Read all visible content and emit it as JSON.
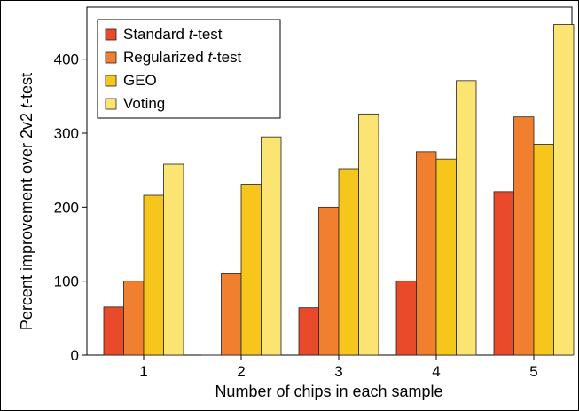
{
  "chart_data": {
    "type": "bar",
    "xlabel": "Number of chips in each sample",
    "ylabel_parts": [
      {
        "text": "Percent improvement over 2v2 ",
        "italic": false
      },
      {
        "text": "t",
        "italic": true
      },
      {
        "text": "-test",
        "italic": false
      }
    ],
    "categories": [
      "1",
      "2",
      "3",
      "4",
      "5"
    ],
    "series": [
      {
        "name_parts": [
          {
            "text": "Standard ",
            "italic": false
          },
          {
            "text": "t",
            "italic": true
          },
          {
            "text": "-test",
            "italic": false
          }
        ],
        "color": "#e84a2a",
        "values": [
          65,
          0,
          64,
          100,
          221
        ]
      },
      {
        "name_parts": [
          {
            "text": "Regularized ",
            "italic": false
          },
          {
            "text": "t",
            "italic": true
          },
          {
            "text": "-test",
            "italic": false
          }
        ],
        "color": "#f07f2f",
        "values": [
          100,
          110,
          200,
          275,
          322
        ]
      },
      {
        "name_parts": [
          {
            "text": "GEO",
            "italic": false
          }
        ],
        "color": "#f7c61c",
        "values": [
          216,
          231,
          252,
          265,
          285
        ]
      },
      {
        "name_parts": [
          {
            "text": "Voting",
            "italic": false
          }
        ],
        "color": "#fbe472",
        "values": [
          258,
          295,
          326,
          371,
          447
        ]
      }
    ],
    "yticks": [
      0,
      100,
      200,
      300,
      400
    ],
    "ylim": [
      0,
      460
    ],
    "legend_position": "top-left",
    "grid": false
  }
}
